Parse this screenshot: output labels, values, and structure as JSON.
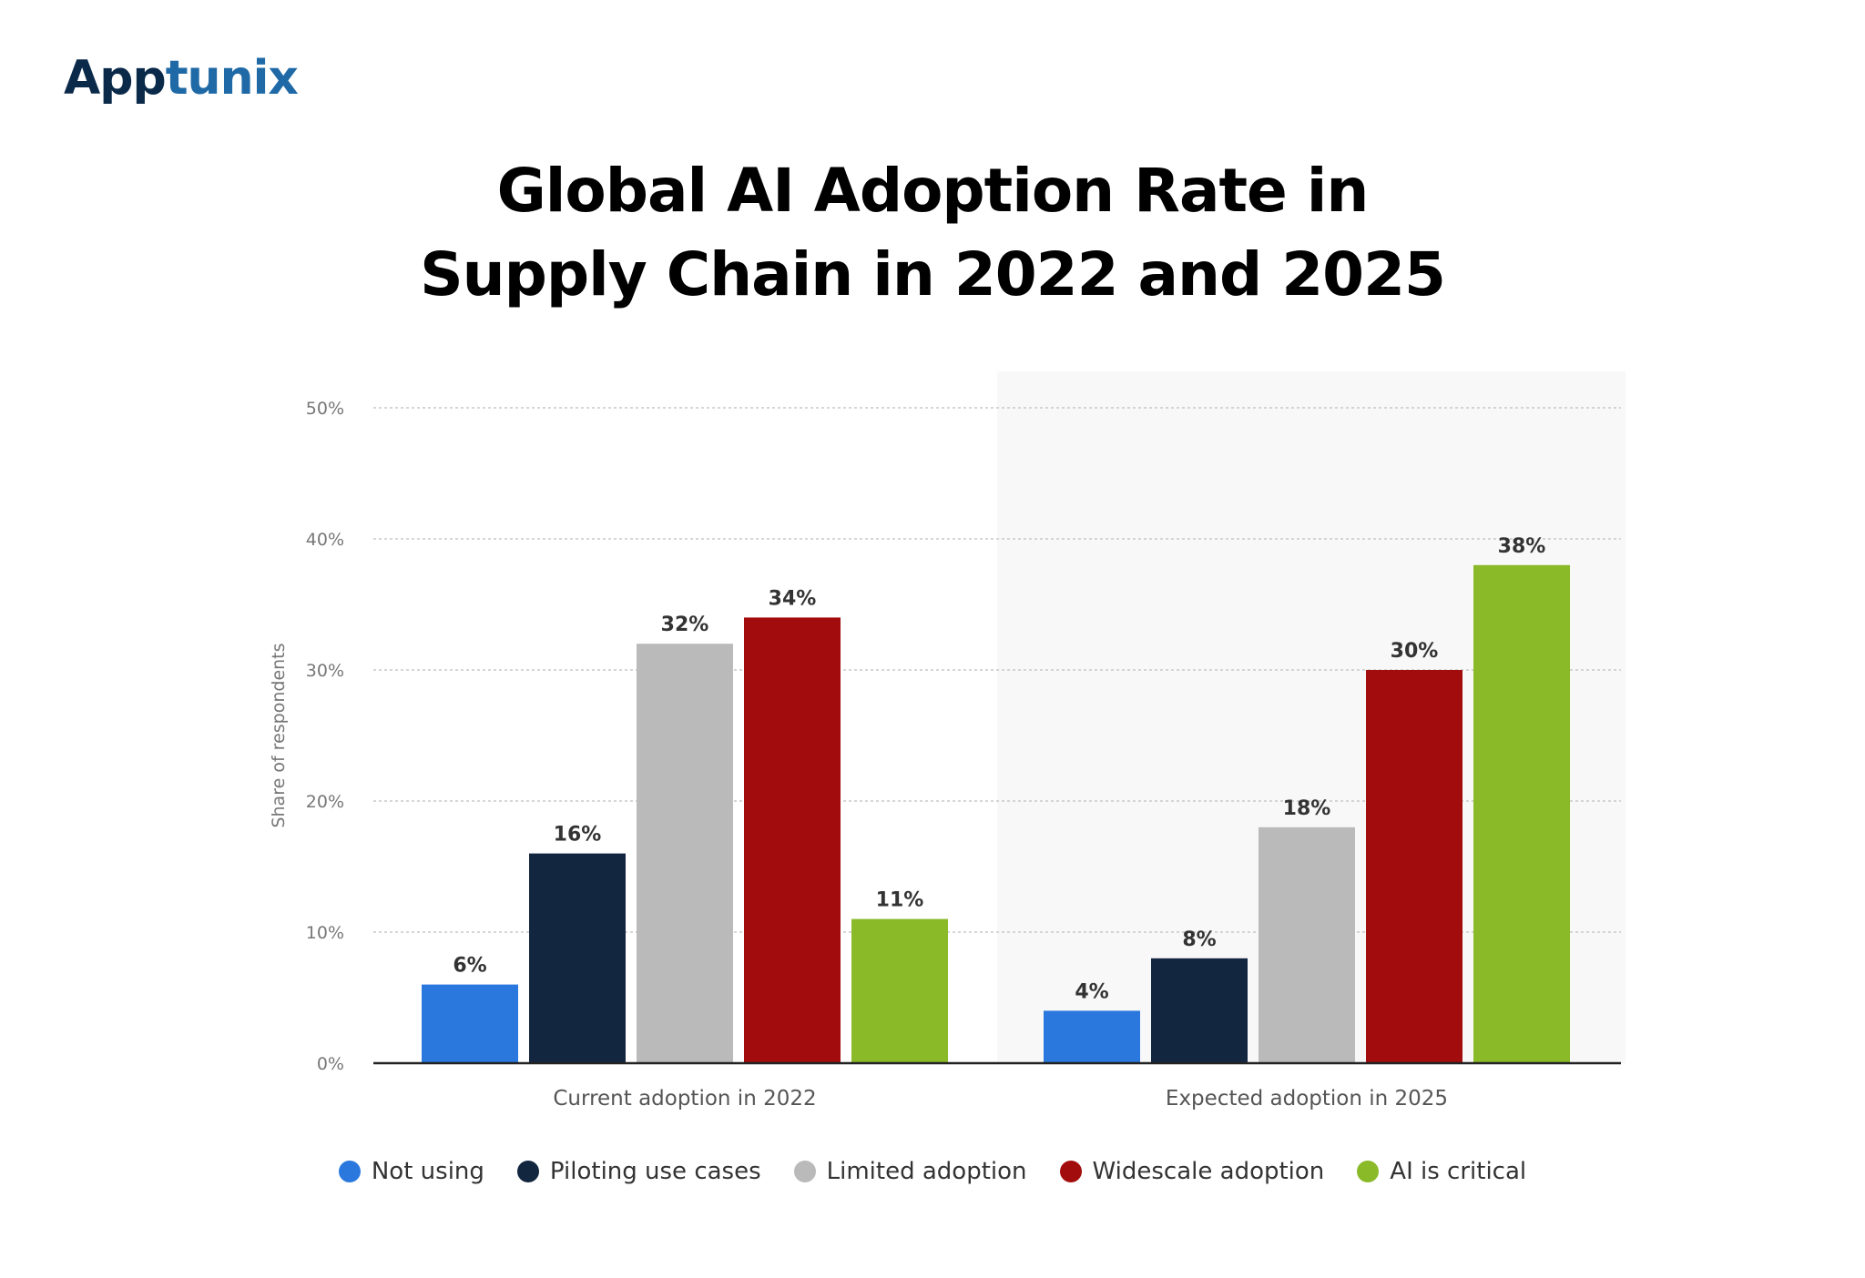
{
  "brand": {
    "part1": "App",
    "part2": "tunix"
  },
  "chart_data": {
    "type": "bar",
    "title_line1": "Global AI Adoption Rate in",
    "title_line2": "Supply Chain in 2022 and 2025",
    "ylabel": "Share of respondents",
    "xlabel": "",
    "ylim": [
      0,
      50
    ],
    "yticks": [
      0,
      10,
      20,
      30,
      40,
      50
    ],
    "ytick_labels": [
      "0%",
      "10%",
      "20%",
      "30%",
      "40%",
      "50%"
    ],
    "categories": [
      "Current adoption in 2022",
      "Expected adoption in 2025"
    ],
    "series": [
      {
        "name": "Not using",
        "color": "#2a78de",
        "values": [
          6,
          4
        ],
        "labels": [
          "6%",
          "4%"
        ]
      },
      {
        "name": "Piloting use cases",
        "color": "#12263f",
        "values": [
          16,
          8
        ],
        "labels": [
          "16%",
          "8%"
        ]
      },
      {
        "name": "Limited adoption",
        "color": "#bababa",
        "values": [
          32,
          18
        ],
        "labels": [
          "32%",
          "18%"
        ]
      },
      {
        "name": "Widescale adoption",
        "color": "#a30c0c",
        "values": [
          34,
          30
        ],
        "labels": [
          "34%",
          "30%"
        ]
      },
      {
        "name": "AI is critical",
        "color": "#8aba28",
        "values": [
          11,
          38
        ],
        "labels": [
          "11%",
          "38%"
        ]
      }
    ],
    "grid": true,
    "legend_position": "bottom"
  }
}
